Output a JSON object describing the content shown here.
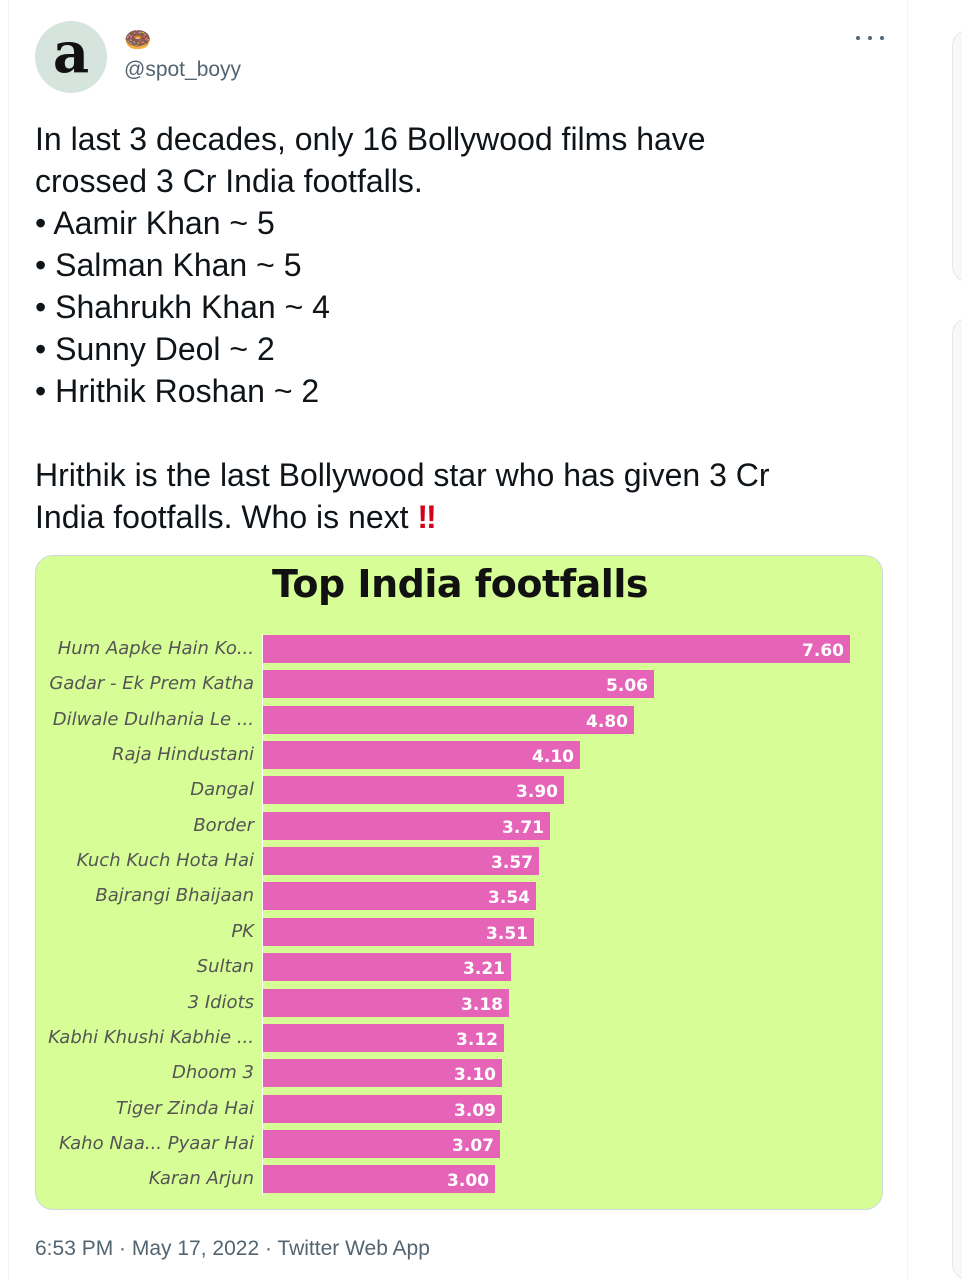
{
  "tweet": {
    "avatar_letter": "a",
    "display_name": "🍩",
    "handle": "@spot_boyy",
    "more_icon": "more-horizontal-icon",
    "text_main": "In last 3 decades, only 16 Bollywood films have\ncrossed 3 Cr India footfalls.\n• Aamir Khan ~ 5\n• Salman Khan ~ 5\n• Shahrukh Khan ~ 4\n• Sunny Deol ~ 2\n• Hrithik Roshan ~ 2\n\nHrithik is the last Bollywood star who has given 3 Cr\nIndia footfalls. Who is next ",
    "text_emoji": "‼",
    "timestamp": "6:53 PM · May 17, 2022 · Twitter Web App"
  },
  "chart_data": {
    "type": "bar",
    "orientation": "horizontal",
    "title": "Top India footfalls",
    "categories": [
      "Hum Aapke Hain Ko...",
      "Gadar - Ek Prem Katha",
      "Dilwale Dulhania Le ...",
      "Raja Hindustani",
      "Dangal",
      "Border",
      "Kuch Kuch Hota Hai",
      "Bajrangi Bhaijaan",
      "PK",
      "Sultan",
      "3 Idiots",
      "Kabhi Khushi Kabhie ...",
      "Dhoom 3",
      "Tiger Zinda Hai",
      "Kaho Naa... Pyaar Hai",
      "Karan Arjun"
    ],
    "values": [
      7.6,
      5.06,
      4.8,
      4.1,
      3.9,
      3.71,
      3.57,
      3.54,
      3.51,
      3.21,
      3.18,
      3.12,
      3.1,
      3.09,
      3.07,
      3.0
    ],
    "value_labels": [
      "7.60",
      "5.06",
      "4.80",
      "4.10",
      "3.90",
      "3.71",
      "3.57",
      "3.54",
      "3.51",
      "3.21",
      "3.18",
      "3.12",
      "3.10",
      "3.09",
      "3.07",
      "3.00"
    ],
    "xlim": [
      0,
      7.6
    ],
    "bar_color": "#e564b8",
    "background_color": "#d6fd96",
    "grid": false,
    "legend": "none"
  }
}
